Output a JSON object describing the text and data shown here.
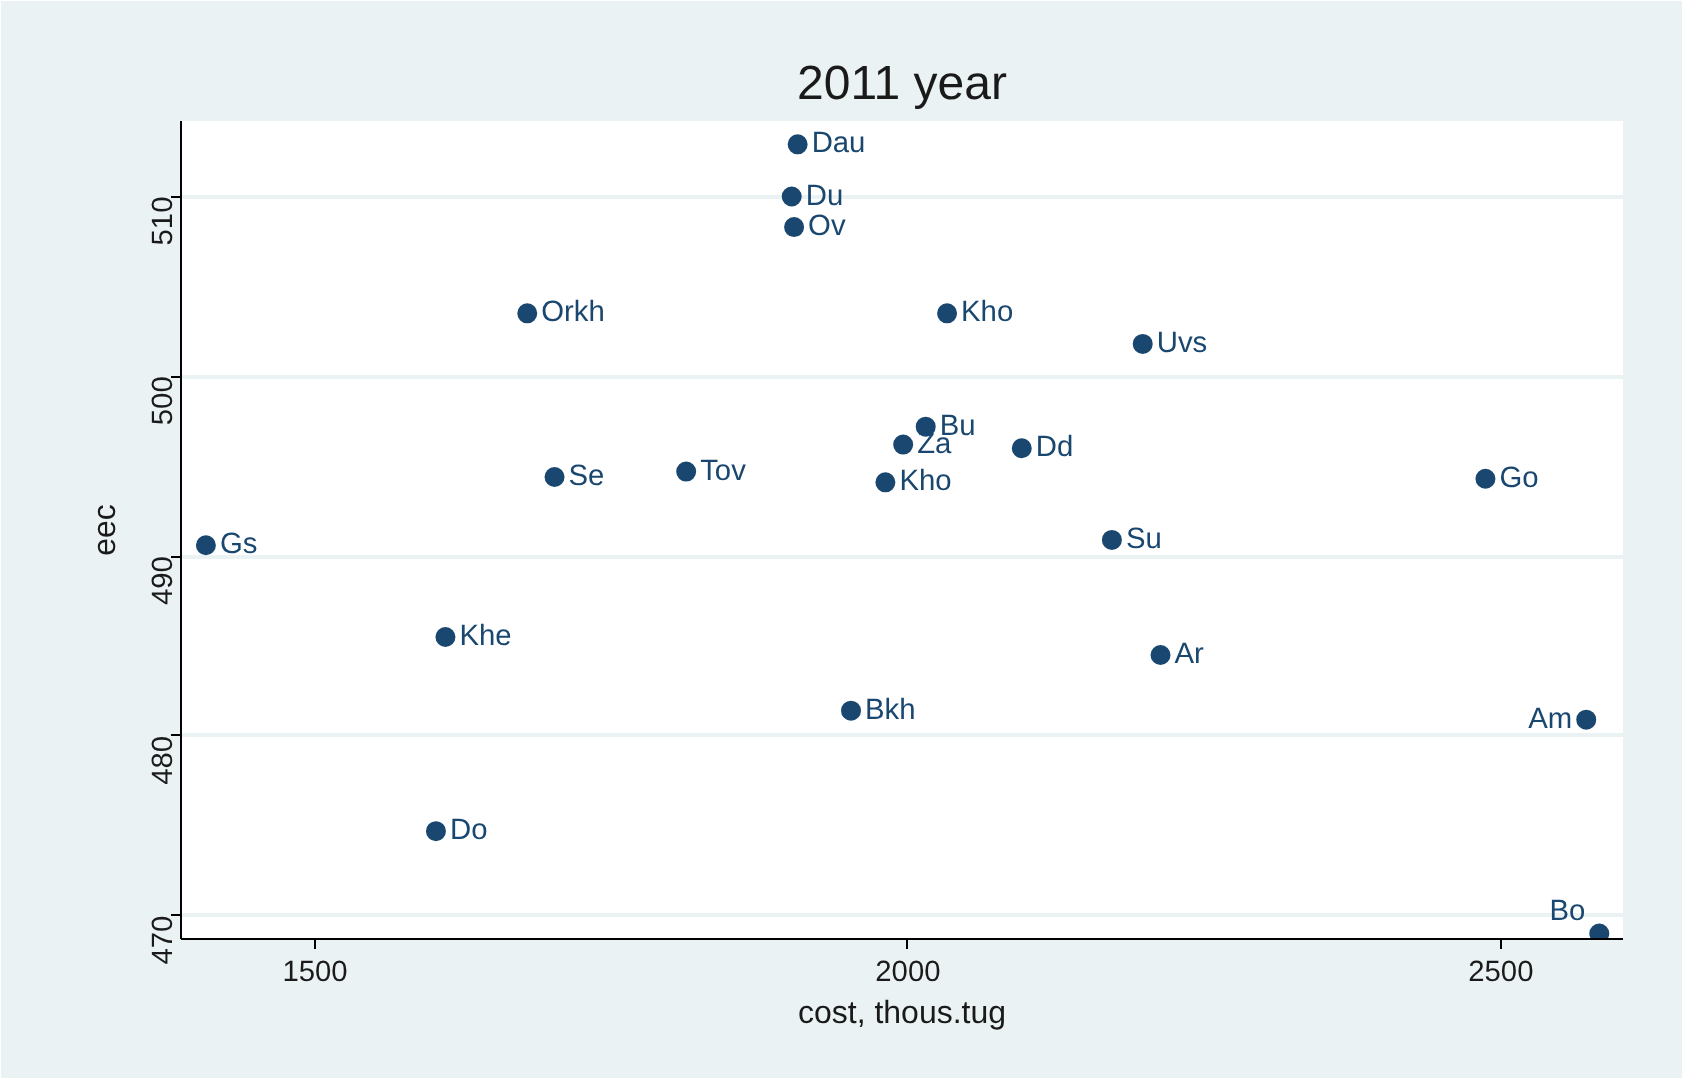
{
  "chart_data": {
    "type": "scatter",
    "title": "2011 year",
    "xlabel": "cost, thous.tug",
    "ylabel": "eec",
    "x": [
      1408,
      1610,
      1602,
      1679,
      1702,
      1813,
      1907,
      1902,
      1904,
      1952,
      1981,
      1996,
      2015,
      2033,
      2096,
      2172,
      2198,
      2213,
      2487,
      2572,
      2583
    ],
    "series": [
      {
        "color": "#1a476f",
        "values": [
          490.6,
          485.5,
          474.7,
          503.5,
          494.4,
          494.7,
          512.9,
          510.0,
          508.3,
          481.4,
          494.1,
          496.2,
          497.2,
          503.5,
          496.0,
          490.9,
          501.8,
          484.5,
          494.3,
          480.9,
          469.0
        ],
        "value_labels": [
          "Gs",
          "Khe",
          "Do",
          "Orkh",
          "Se",
          "Tov",
          "Dau",
          "Du",
          "Ov",
          "Bkh",
          "Kho",
          "Za",
          "Bu",
          "Kho",
          "Dd",
          "Su",
          "Uvs",
          "Ar",
          "Go",
          "Am",
          "Bo"
        ]
      }
    ],
    "xlim": [
      1387,
      2603
    ],
    "ylim": [
      468.7,
      514.2
    ],
    "xticks": [
      1500,
      2000,
      2500
    ],
    "yticks": [
      470,
      480,
      490,
      500,
      510
    ],
    "grid": "y",
    "marker": "circle"
  }
}
